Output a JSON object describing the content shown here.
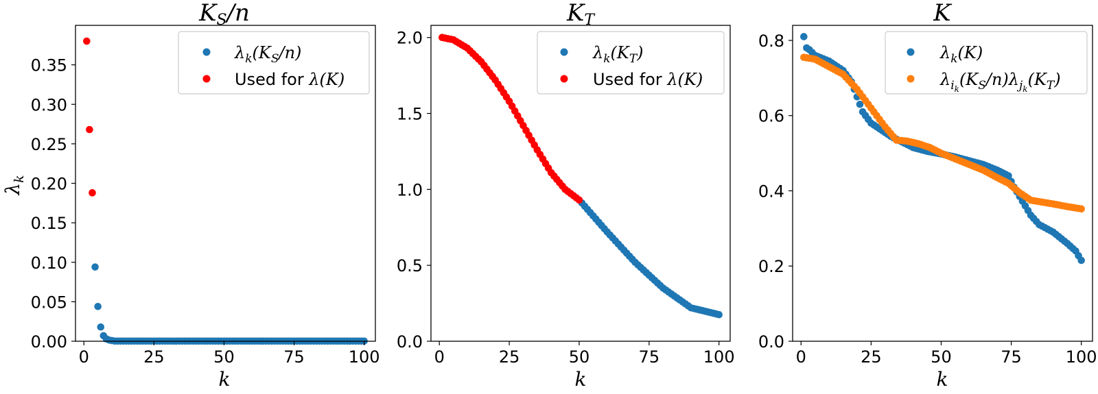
{
  "chart_data": [
    {
      "type": "scatter",
      "title": "K_S/n",
      "xlabel": "k",
      "ylabel": "λ_k",
      "xlim": [
        -3,
        104
      ],
      "ylim": [
        0,
        0.4
      ],
      "xticks": [
        0,
        25,
        50,
        75,
        100
      ],
      "yticks": [
        0.0,
        0.05,
        0.1,
        0.15,
        0.2,
        0.25,
        0.3,
        0.35
      ],
      "ytick_labels": [
        "0.00",
        "0.05",
        "0.10",
        "0.15",
        "0.20",
        "0.25",
        "0.30",
        "0.35"
      ],
      "legend_position": "top-right",
      "series": [
        {
          "name": "λk(KS/n)",
          "color": "#1f77b4",
          "x_range": [
            1,
            100
          ],
          "y_points": [
            [
              4,
              0.094
            ],
            [
              5,
              0.044
            ],
            [
              6,
              0.018
            ],
            [
              7,
              0.007
            ],
            [
              8,
              0.003
            ],
            [
              9,
              0.0015
            ],
            [
              10,
              0.0008
            ]
          ],
          "y_tail": 0.0002
        },
        {
          "name": "Used for λ(K)",
          "color": "#ff0000",
          "points": [
            [
              1,
              0.38
            ],
            [
              2,
              0.268
            ],
            [
              3,
              0.188
            ]
          ]
        }
      ]
    },
    {
      "type": "scatter",
      "title": "K_T",
      "xlabel": "k",
      "ylabel": "",
      "xlim": [
        -3,
        104
      ],
      "ylim": [
        0,
        2.08
      ],
      "xticks": [
        0,
        25,
        50,
        75,
        100
      ],
      "yticks": [
        0.0,
        0.5,
        1.0,
        1.5,
        2.0
      ],
      "ytick_labels": [
        "0.0",
        "0.5",
        "1.0",
        "1.5",
        "2.0"
      ],
      "legend_position": "top-right",
      "series": [
        {
          "name": "λk(KT)",
          "color": "#1f77b4",
          "x_range": [
            51,
            100
          ],
          "curve_anchors": [
            [
              51,
              0.91
            ],
            [
              60,
              0.72
            ],
            [
              70,
              0.52
            ],
            [
              80,
              0.35
            ],
            [
              90,
              0.22
            ],
            [
              100,
              0.175
            ]
          ]
        },
        {
          "name": "Used for λ(K)",
          "color": "#ff0000",
          "x_range": [
            1,
            50
          ],
          "curve_anchors": [
            [
              1,
              2.0
            ],
            [
              5,
              1.985
            ],
            [
              10,
              1.93
            ],
            [
              15,
              1.84
            ],
            [
              20,
              1.72
            ],
            [
              25,
              1.58
            ],
            [
              30,
              1.42
            ],
            [
              35,
              1.26
            ],
            [
              40,
              1.11
            ],
            [
              45,
              1.0
            ],
            [
              50,
              0.93
            ]
          ]
        }
      ]
    },
    {
      "type": "scatter",
      "title": "K",
      "xlabel": "k",
      "ylabel": "",
      "xlim": [
        -3,
        104
      ],
      "ylim": [
        0,
        0.84
      ],
      "xticks": [
        0,
        25,
        50,
        75,
        100
      ],
      "yticks": [
        0.0,
        0.2,
        0.4,
        0.6,
        0.8
      ],
      "ytick_labels": [
        "0.0",
        "0.2",
        "0.4",
        "0.6",
        "0.8"
      ],
      "legend_position": "top-right",
      "series": [
        {
          "name": "λk(K)",
          "color": "#1f77b4",
          "x_range": [
            1,
            100
          ],
          "curve_anchors": [
            [
              1,
              0.81
            ],
            [
              2,
              0.78
            ],
            [
              3,
              0.775
            ],
            [
              5,
              0.76
            ],
            [
              10,
              0.745
            ],
            [
              15,
              0.72
            ],
            [
              18,
              0.69
            ],
            [
              20,
              0.65
            ],
            [
              22,
              0.61
            ],
            [
              25,
              0.58
            ],
            [
              28,
              0.565
            ],
            [
              32,
              0.545
            ],
            [
              36,
              0.53
            ],
            [
              40,
              0.515
            ],
            [
              45,
              0.505
            ],
            [
              50,
              0.498
            ],
            [
              55,
              0.49
            ],
            [
              60,
              0.48
            ],
            [
              65,
              0.47
            ],
            [
              70,
              0.455
            ],
            [
              74,
              0.44
            ],
            [
              76,
              0.41
            ],
            [
              78,
              0.385
            ],
            [
              80,
              0.36
            ],
            [
              82,
              0.335
            ],
            [
              85,
              0.31
            ],
            [
              90,
              0.29
            ],
            [
              95,
              0.26
            ],
            [
              98,
              0.24
            ],
            [
              100,
              0.215
            ]
          ]
        },
        {
          "name": "λik(KS/n)λjk(KT)",
          "color": "#ff7f0e",
          "x_range": [
            1,
            100
          ],
          "curve_anchors": [
            [
              1,
              0.755
            ],
            [
              5,
              0.75
            ],
            [
              10,
              0.73
            ],
            [
              15,
              0.71
            ],
            [
              20,
              0.67
            ],
            [
              25,
              0.62
            ],
            [
              30,
              0.57
            ],
            [
              34,
              0.535
            ],
            [
              38,
              0.532
            ],
            [
              42,
              0.525
            ],
            [
              46,
              0.515
            ],
            [
              50,
              0.5
            ],
            [
              55,
              0.485
            ],
            [
              60,
              0.47
            ],
            [
              65,
              0.455
            ],
            [
              70,
              0.435
            ],
            [
              74,
              0.42
            ],
            [
              78,
              0.395
            ],
            [
              82,
              0.375
            ],
            [
              86,
              0.37
            ],
            [
              90,
              0.365
            ],
            [
              95,
              0.358
            ],
            [
              100,
              0.352
            ]
          ]
        }
      ]
    }
  ]
}
